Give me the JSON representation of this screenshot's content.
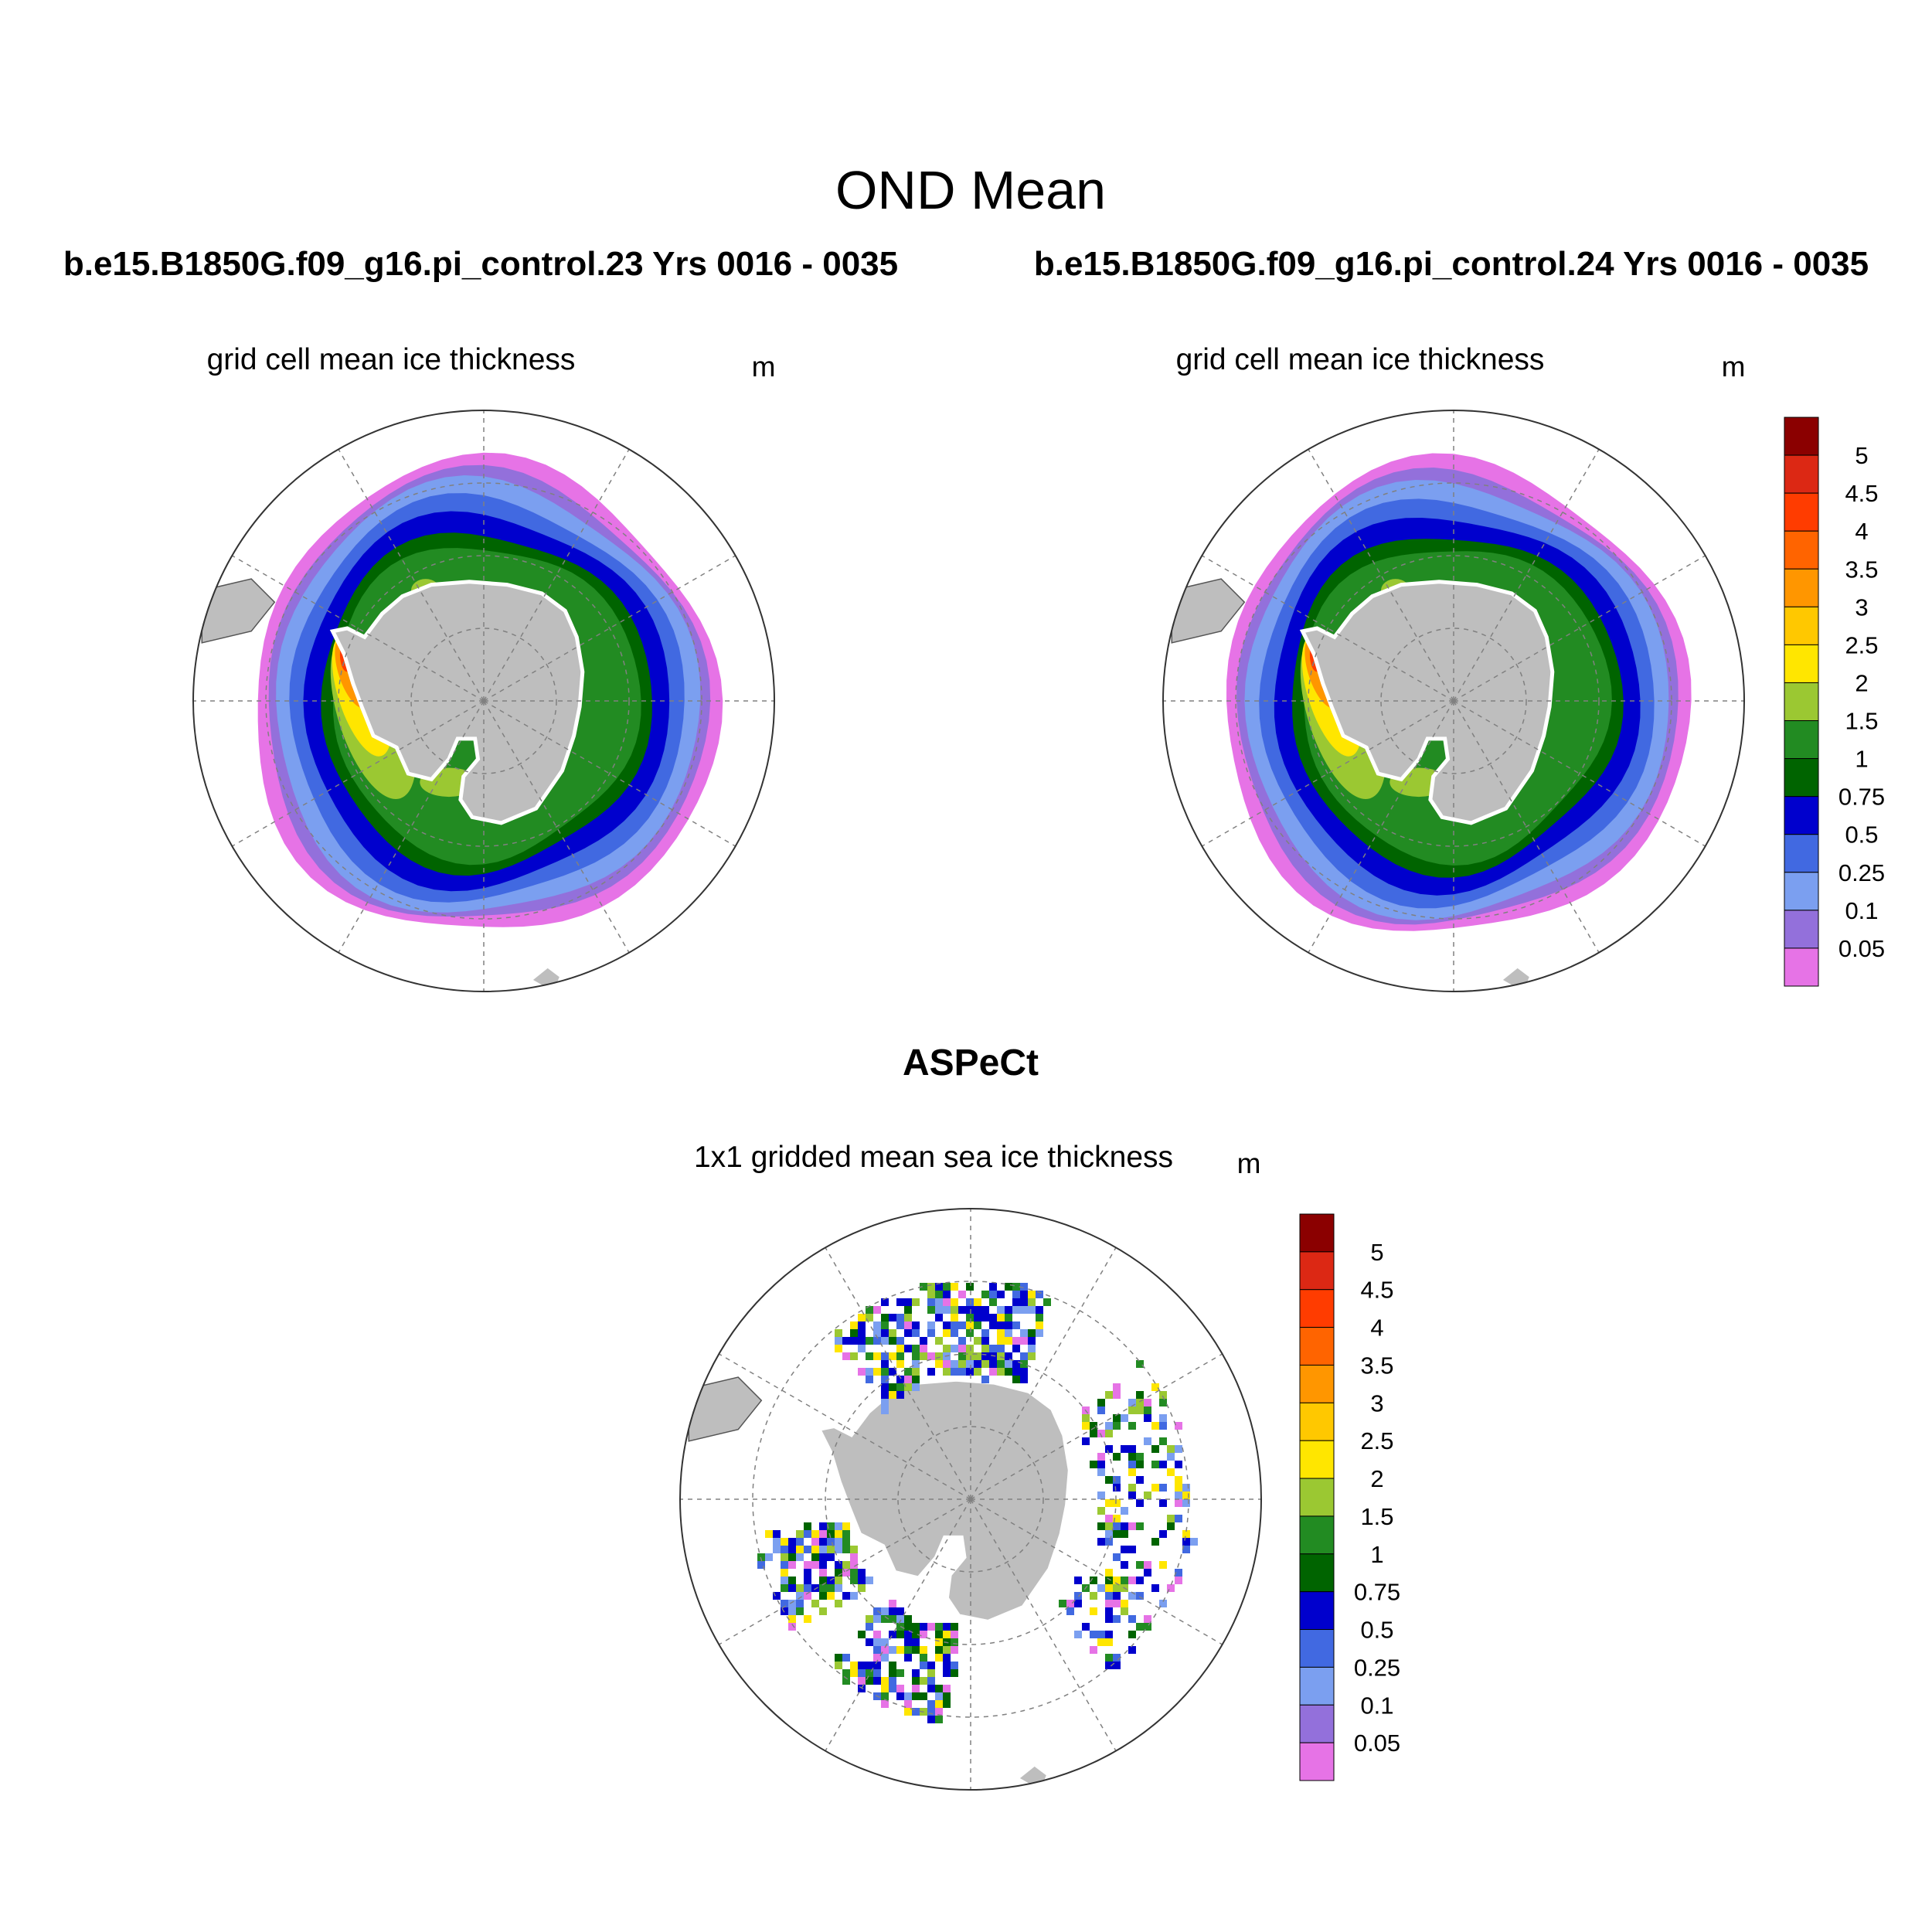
{
  "figure": {
    "title": "OND Mean",
    "case_a_title": "b.e15.B1850G.f09_g16.pi_control.23  Yrs 0016 - 0035",
    "case_b_title": "b.e15.B1850G.f09_g16.pi_control.24  Yrs 0016 - 0035",
    "obs_title": "ASPeCt"
  },
  "panels": [
    {
      "id": "model-23",
      "label": "grid cell mean ice thickness",
      "units": "m",
      "kind": "model"
    },
    {
      "id": "model-24",
      "label": "grid cell mean ice thickness",
      "units": "m",
      "kind": "model"
    },
    {
      "id": "aspect",
      "label": "1x1 gridded mean sea ice thickness",
      "units": "m",
      "kind": "obs"
    }
  ],
  "colorbar": {
    "tick_labels": [
      "5",
      "4.5",
      "4",
      "3.5",
      "3",
      "2.5",
      "2",
      "1.5",
      "1",
      "0.75",
      "0.5",
      "0.25",
      "0.1",
      "0.05"
    ],
    "colors_top_to_bottom": [
      "#8b0000",
      "#dc2814",
      "#ff3c00",
      "#ff6400",
      "#ff9600",
      "#ffc800",
      "#ffe600",
      "#9bc832",
      "#228b22",
      "#006400",
      "#0000cd",
      "#4169e1",
      "#7b9ff0",
      "#9370db",
      "#e673e6"
    ]
  },
  "colors": {
    "land": "#bebebe",
    "grid": "#808080",
    "coast": "#555555"
  }
}
